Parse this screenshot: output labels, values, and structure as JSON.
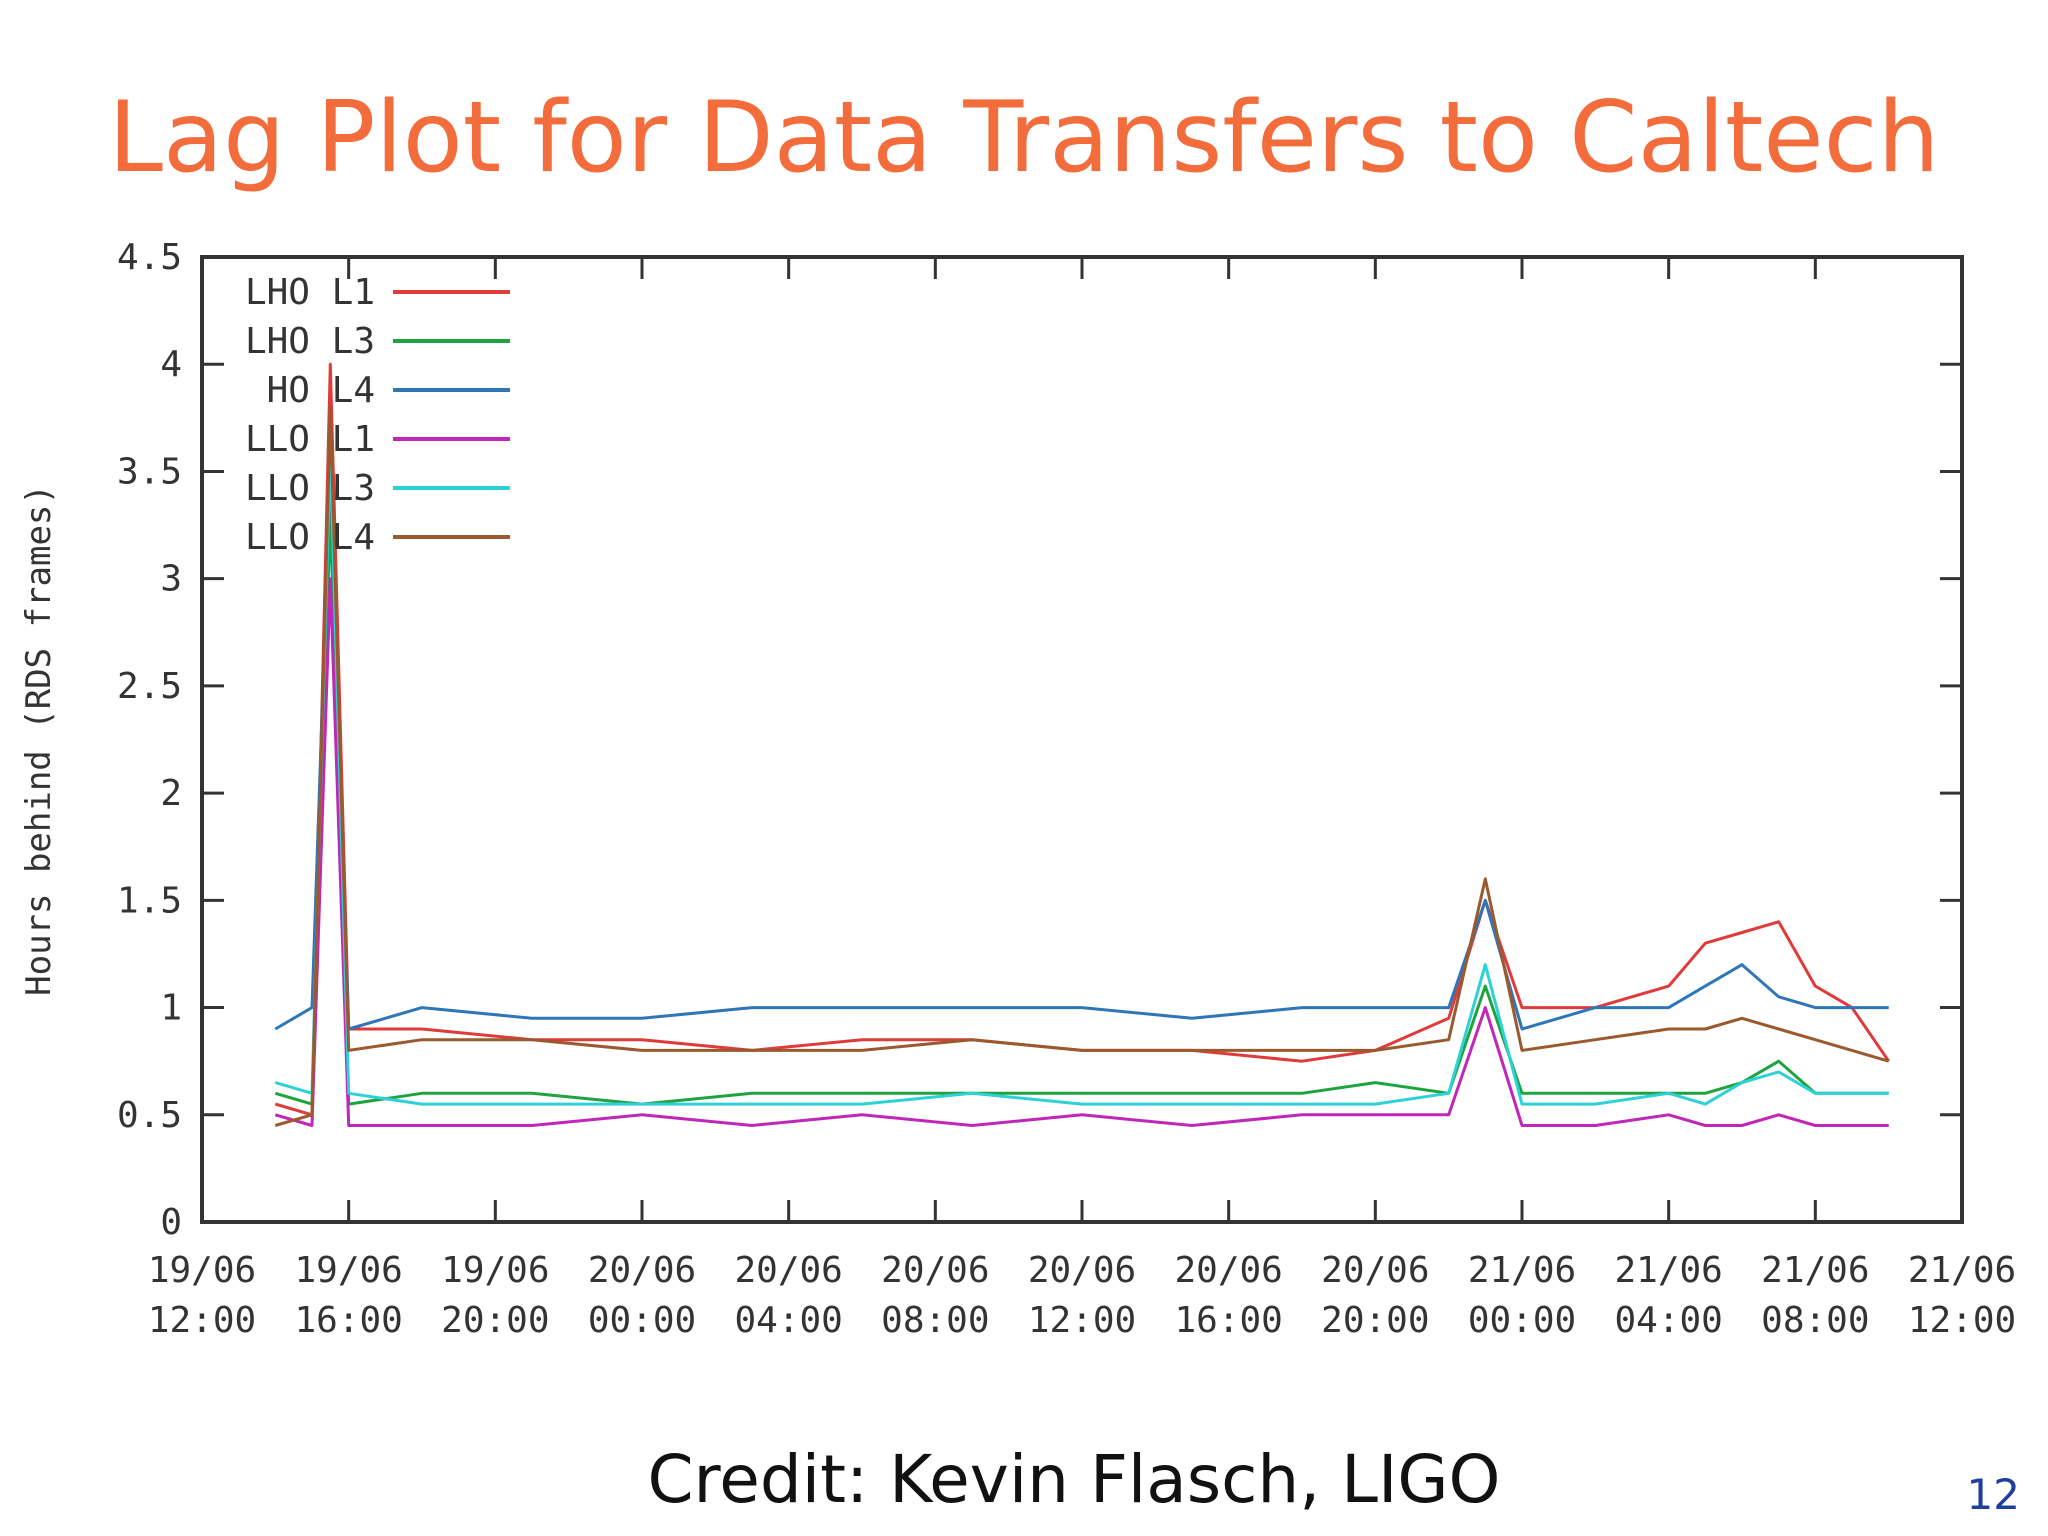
{
  "slide": {
    "title": "Lag Plot for Data Transfers to Caltech",
    "credit": "Credit: Kevin Flasch, LIGO",
    "page_number": "12"
  },
  "chart_data": {
    "type": "line",
    "title": "",
    "xlabel": "",
    "ylabel": "Hours behind (RDS frames)",
    "ylim": [
      0,
      4.5
    ],
    "yticks": [
      0,
      0.5,
      1,
      1.5,
      2,
      2.5,
      3,
      3.5,
      4,
      4.5
    ],
    "ytick_labels": [
      "0",
      "0.5",
      "1",
      "1.5",
      "2",
      "2.5",
      "3",
      "3.5",
      "4",
      "4.5"
    ],
    "xlim": [
      "19/06 12:00",
      "21/06 12:00"
    ],
    "xticks": [
      {
        "date": "19/06",
        "time": "12:00",
        "hours": 0
      },
      {
        "date": "19/06",
        "time": "16:00",
        "hours": 4
      },
      {
        "date": "19/06",
        "time": "20:00",
        "hours": 8
      },
      {
        "date": "20/06",
        "time": "00:00",
        "hours": 12
      },
      {
        "date": "20/06",
        "time": "04:00",
        "hours": 16
      },
      {
        "date": "20/06",
        "time": "08:00",
        "hours": 20
      },
      {
        "date": "20/06",
        "time": "12:00",
        "hours": 24
      },
      {
        "date": "20/06",
        "time": "16:00",
        "hours": 28
      },
      {
        "date": "20/06",
        "time": "20:00",
        "hours": 32
      },
      {
        "date": "21/06",
        "time": "00:00",
        "hours": 36
      },
      {
        "date": "21/06",
        "time": "04:00",
        "hours": 40
      },
      {
        "date": "21/06",
        "time": "08:00",
        "hours": 44
      },
      {
        "date": "21/06",
        "time": "12:00",
        "hours": 48
      }
    ],
    "grid": false,
    "legend_position": "top-left",
    "series": [
      {
        "name": "LHO L1",
        "color": "#e03a3a",
        "x": [
          "19/06 14:00",
          "19/06 15:00",
          "19/06 15:30",
          "19/06 16:00",
          "19/06 18:00",
          "19/06 21:00",
          "20/06 00:00",
          "20/06 03:00",
          "20/06 06:00",
          "20/06 09:00",
          "20/06 12:00",
          "20/06 15:00",
          "20/06 18:00",
          "20/06 20:00",
          "20/06 22:00",
          "20/06 23:00",
          "21/06 00:00",
          "21/06 02:00",
          "21/06 04:00",
          "21/06 05:00",
          "21/06 06:00",
          "21/06 07:00",
          "21/06 08:00",
          "21/06 09:00",
          "21/06 10:00"
        ],
        "y": [
          0.55,
          0.5,
          4.0,
          0.9,
          0.9,
          0.85,
          0.85,
          0.8,
          0.85,
          0.85,
          0.8,
          0.8,
          0.75,
          0.8,
          0.95,
          1.5,
          1.0,
          1.0,
          1.1,
          1.3,
          1.35,
          1.4,
          1.1,
          1.0,
          0.75
        ]
      },
      {
        "name": "LHO L3",
        "color": "#1fa33f",
        "x": [
          "19/06 14:00",
          "19/06 15:00",
          "19/06 15:30",
          "19/06 16:00",
          "19/06 18:00",
          "19/06 21:00",
          "20/06 00:00",
          "20/06 03:00",
          "20/06 06:00",
          "20/06 09:00",
          "20/06 12:00",
          "20/06 15:00",
          "20/06 18:00",
          "20/06 20:00",
          "20/06 22:00",
          "20/06 23:00",
          "21/06 00:00",
          "21/06 02:00",
          "21/06 04:00",
          "21/06 05:00",
          "21/06 06:00",
          "21/06 07:00",
          "21/06 08:00",
          "21/06 09:00",
          "21/06 10:00"
        ],
        "y": [
          0.6,
          0.55,
          3.3,
          0.55,
          0.6,
          0.6,
          0.55,
          0.6,
          0.6,
          0.6,
          0.6,
          0.6,
          0.6,
          0.65,
          0.6,
          1.1,
          0.6,
          0.6,
          0.6,
          0.6,
          0.65,
          0.75,
          0.6,
          0.6,
          0.6
        ]
      },
      {
        "name": "HO L4",
        "color": "#2f76b8",
        "x": [
          "19/06 14:00",
          "19/06 15:00",
          "19/06 15:30",
          "19/06 16:00",
          "19/06 18:00",
          "19/06 21:00",
          "20/06 00:00",
          "20/06 03:00",
          "20/06 06:00",
          "20/06 09:00",
          "20/06 12:00",
          "20/06 15:00",
          "20/06 18:00",
          "20/06 20:00",
          "20/06 22:00",
          "20/06 23:00",
          "21/06 00:00",
          "21/06 02:00",
          "21/06 04:00",
          "21/06 05:00",
          "21/06 06:00",
          "21/06 07:00",
          "21/06 08:00",
          "21/06 09:00",
          "21/06 10:00"
        ],
        "y": [
          0.9,
          1.0,
          3.5,
          0.9,
          1.0,
          0.95,
          0.95,
          1.0,
          1.0,
          1.0,
          1.0,
          0.95,
          1.0,
          1.0,
          1.0,
          1.5,
          0.9,
          1.0,
          1.0,
          1.1,
          1.2,
          1.05,
          1.0,
          1.0,
          1.0
        ]
      },
      {
        "name": "LLO L1",
        "color": "#c026b8",
        "x": [
          "19/06 14:00",
          "19/06 15:00",
          "19/06 15:30",
          "19/06 16:00",
          "19/06 18:00",
          "19/06 21:00",
          "20/06 00:00",
          "20/06 03:00",
          "20/06 06:00",
          "20/06 09:00",
          "20/06 12:00",
          "20/06 15:00",
          "20/06 18:00",
          "20/06 20:00",
          "20/06 22:00",
          "20/06 23:00",
          "21/06 00:00",
          "21/06 02:00",
          "21/06 04:00",
          "21/06 05:00",
          "21/06 06:00",
          "21/06 07:00",
          "21/06 08:00",
          "21/06 09:00",
          "21/06 10:00"
        ],
        "y": [
          0.5,
          0.45,
          3.0,
          0.45,
          0.45,
          0.45,
          0.5,
          0.45,
          0.5,
          0.45,
          0.5,
          0.45,
          0.5,
          0.5,
          0.5,
          1.0,
          0.45,
          0.45,
          0.5,
          0.45,
          0.45,
          0.5,
          0.45,
          0.45,
          0.45
        ]
      },
      {
        "name": "LLO L3",
        "color": "#2ed1d6",
        "x": [
          "19/06 14:00",
          "19/06 15:00",
          "19/06 15:30",
          "19/06 16:00",
          "19/06 18:00",
          "19/06 21:00",
          "20/06 00:00",
          "20/06 03:00",
          "20/06 06:00",
          "20/06 09:00",
          "20/06 12:00",
          "20/06 15:00",
          "20/06 18:00",
          "20/06 20:00",
          "20/06 22:00",
          "20/06 23:00",
          "21/06 00:00",
          "21/06 02:00",
          "21/06 04:00",
          "21/06 05:00",
          "21/06 06:00",
          "21/06 07:00",
          "21/06 08:00",
          "21/06 09:00",
          "21/06 10:00"
        ],
        "y": [
          0.65,
          0.6,
          3.6,
          0.6,
          0.55,
          0.55,
          0.55,
          0.55,
          0.55,
          0.6,
          0.55,
          0.55,
          0.55,
          0.55,
          0.6,
          1.2,
          0.55,
          0.55,
          0.6,
          0.55,
          0.65,
          0.7,
          0.6,
          0.6,
          0.6
        ]
      },
      {
        "name": "LLO L4",
        "color": "#9a5a2e",
        "x": [
          "19/06 14:00",
          "19/06 15:00",
          "19/06 15:30",
          "19/06 16:00",
          "19/06 18:00",
          "19/06 21:00",
          "20/06 00:00",
          "20/06 03:00",
          "20/06 06:00",
          "20/06 09:00",
          "20/06 12:00",
          "20/06 15:00",
          "20/06 18:00",
          "20/06 20:00",
          "20/06 22:00",
          "20/06 23:00",
          "21/06 00:00",
          "21/06 02:00",
          "21/06 04:00",
          "21/06 05:00",
          "21/06 06:00",
          "21/06 07:00",
          "21/06 08:00",
          "21/06 09:00",
          "21/06 10:00"
        ],
        "y": [
          0.45,
          0.5,
          3.8,
          0.8,
          0.85,
          0.85,
          0.8,
          0.8,
          0.8,
          0.85,
          0.8,
          0.8,
          0.8,
          0.8,
          0.85,
          1.6,
          0.8,
          0.85,
          0.9,
          0.9,
          0.95,
          0.9,
          0.85,
          0.8,
          0.75
        ]
      }
    ]
  }
}
